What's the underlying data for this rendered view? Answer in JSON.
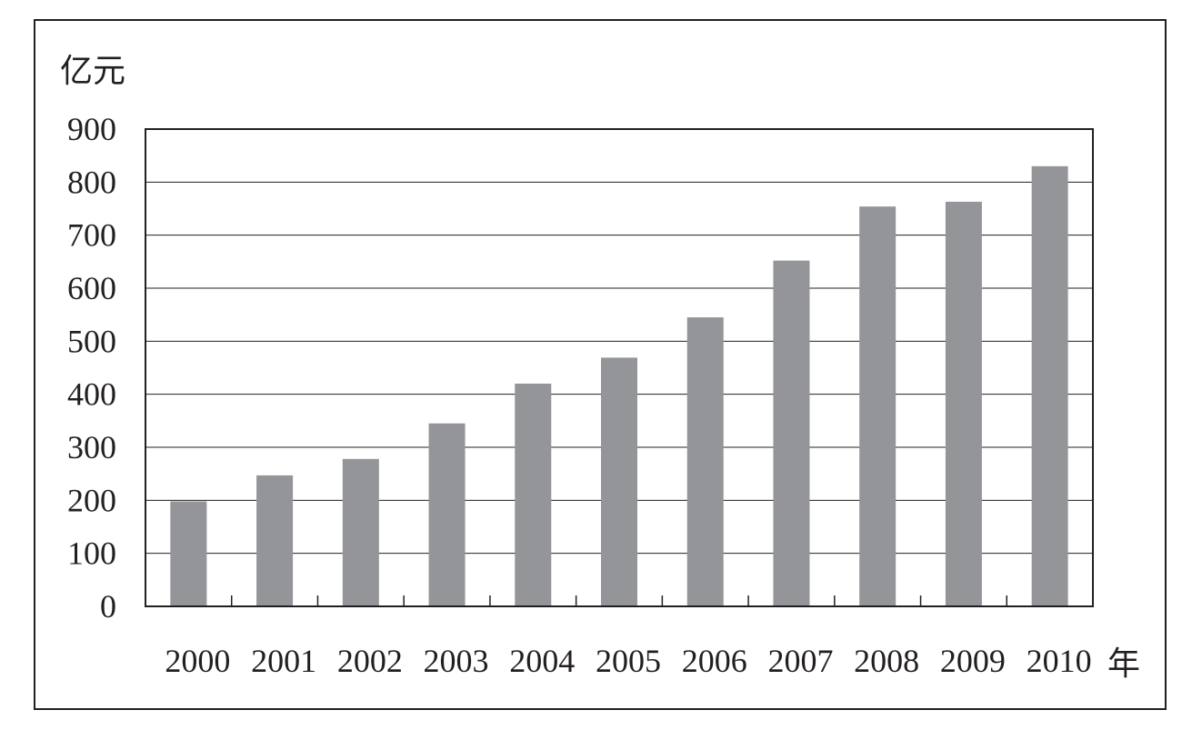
{
  "chart_data": {
    "type": "bar",
    "title": "",
    "ylabel": "亿元",
    "xlabel": "年",
    "categories": [
      "2000",
      "2001",
      "2002",
      "2003",
      "2004",
      "2005",
      "2006",
      "2007",
      "2008",
      "2009",
      "2010"
    ],
    "values": [
      198,
      247,
      278,
      345,
      420,
      469,
      545,
      652,
      754,
      763,
      830
    ],
    "ylim": [
      0,
      900
    ],
    "yticks": [
      "0",
      "100",
      "200",
      "300",
      "400",
      "500",
      "600",
      "700",
      "800",
      "900"
    ],
    "grid": true,
    "legend": "none",
    "bar_color": "#939598",
    "axis_color": "#231f20"
  }
}
